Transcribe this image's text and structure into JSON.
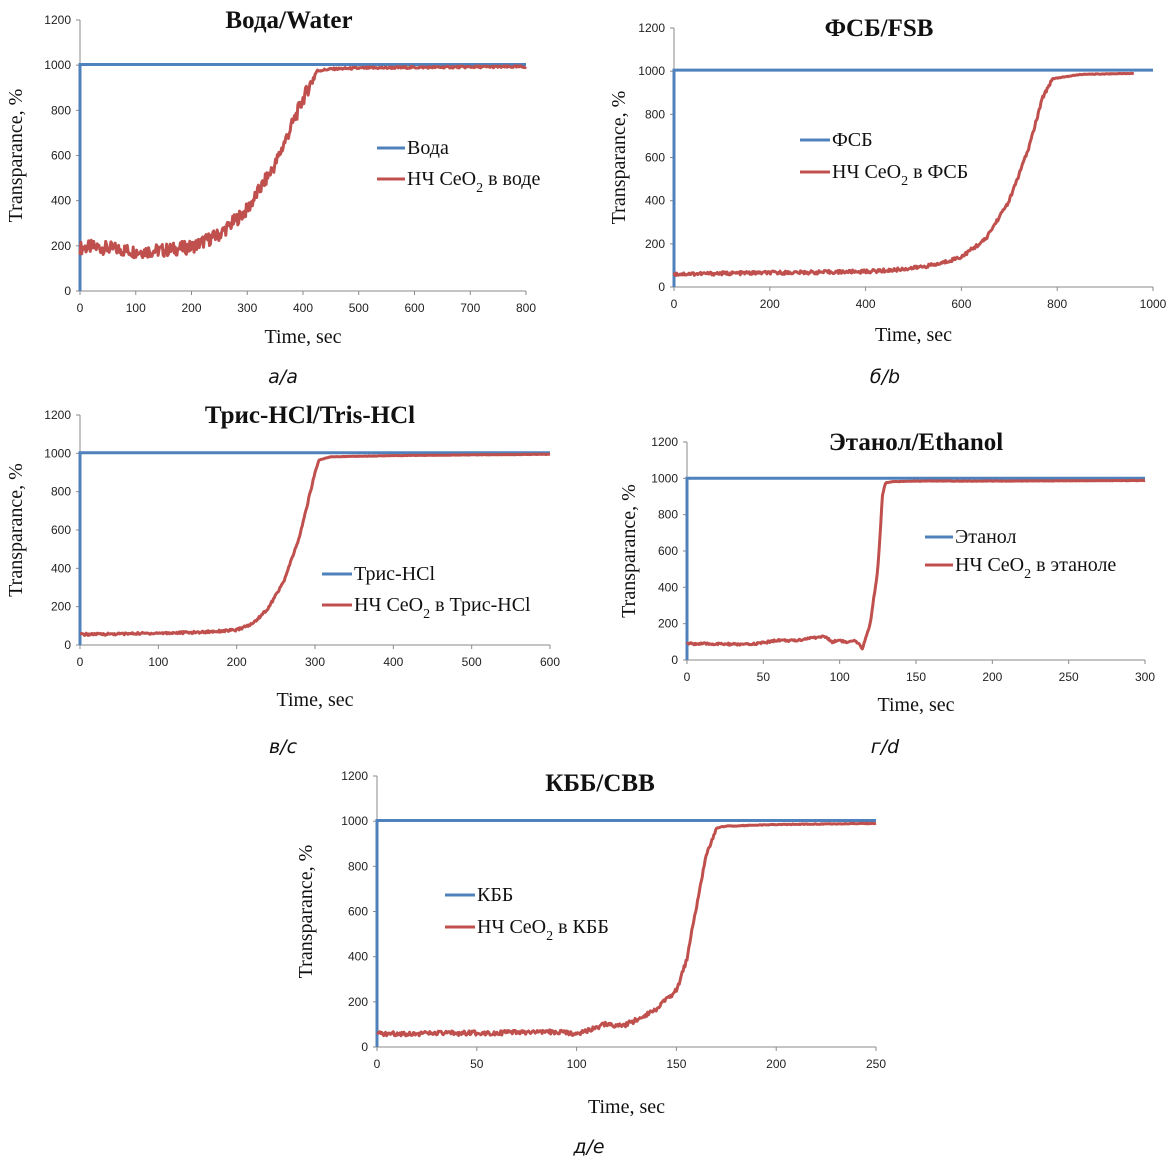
{
  "colors": {
    "reference": "#4f81bd",
    "sample": "#c0504d"
  },
  "chart_data": [
    {
      "type": "line",
      "title": "Вода/Water",
      "caption": "а/a",
      "xlabel": "Time, sec",
      "ylabel": "Transparance, %",
      "xlim": [
        0,
        800
      ],
      "ylim": [
        0,
        1200
      ],
      "xticks": [
        0,
        100,
        200,
        300,
        400,
        500,
        600,
        700,
        800
      ],
      "yticks": [
        0,
        200,
        400,
        600,
        800,
        1000,
        1200
      ],
      "legend": {
        "ref": "Вода",
        "sample_prefix": "НЧ CeO",
        "sample_sub": "2",
        "sample_suffix": " в воде"
      },
      "series": [
        {
          "name": "Вода",
          "role": "reference",
          "x": [
            0,
            0,
            800
          ],
          "y": [
            0,
            1003,
            1003
          ]
        },
        {
          "name": "НЧ CeO2 в воде",
          "role": "sample",
          "noise": 30,
          "x": [
            0,
            20,
            50,
            100,
            150,
            200,
            250,
            300,
            350,
            400,
            425,
            450,
            500,
            600,
            700,
            800
          ],
          "y": [
            190,
            195,
            190,
            175,
            180,
            195,
            250,
            360,
            560,
            850,
            975,
            983,
            987,
            990,
            992,
            993
          ]
        }
      ]
    },
    {
      "type": "line",
      "title": "ФСБ/FSB",
      "caption": "б/b",
      "xlabel": "Time, sec",
      "ylabel": "Transparance, %",
      "xlim": [
        0,
        1000
      ],
      "ylim": [
        0,
        1200
      ],
      "xticks": [
        0,
        200,
        400,
        600,
        800,
        1000
      ],
      "yticks": [
        0,
        200,
        400,
        600,
        800,
        1000,
        1200
      ],
      "legend": {
        "ref": "ФСБ",
        "sample_prefix": "НЧ CeO",
        "sample_sub": "2",
        "sample_suffix": " в ФСБ"
      },
      "series": [
        {
          "name": "ФСБ",
          "role": "reference",
          "x": [
            0,
            0,
            1000
          ],
          "y": [
            0,
            1005,
            1005
          ]
        },
        {
          "name": "НЧ CeO2 в ФСБ",
          "role": "sample",
          "noise": 8,
          "x": [
            0,
            100,
            200,
            300,
            400,
            450,
            500,
            550,
            600,
            650,
            700,
            740,
            770,
            790,
            850,
            960
          ],
          "y": [
            60,
            63,
            66,
            68,
            72,
            77,
            88,
            105,
            140,
            220,
            400,
            640,
            880,
            965,
            985,
            990
          ]
        }
      ]
    },
    {
      "type": "line",
      "title": "Трис-HCl/Tris-HCl",
      "caption": "в/c",
      "xlabel": "Time, sec",
      "ylabel": "Transparance, %",
      "xlim": [
        0,
        600
      ],
      "ylim": [
        0,
        1200
      ],
      "xticks": [
        0,
        100,
        200,
        300,
        400,
        500,
        600
      ],
      "yticks": [
        0,
        200,
        400,
        600,
        800,
        1000,
        1200
      ],
      "legend": {
        "ref": "Трис-HCl",
        "sample_prefix": "НЧ CeO",
        "sample_sub": "2",
        "sample_suffix": " в Трис-HCl"
      },
      "series": [
        {
          "name": "Трис-HCl",
          "role": "reference",
          "x": [
            0,
            0,
            600
          ],
          "y": [
            0,
            1003,
            1003
          ]
        },
        {
          "name": "НЧ CeO2 в Трис-HCl",
          "role": "sample",
          "noise": 6,
          "x": [
            0,
            50,
            100,
            150,
            200,
            220,
            240,
            260,
            280,
            300,
            305,
            320,
            400,
            500,
            600
          ],
          "y": [
            55,
            58,
            62,
            66,
            78,
            110,
            190,
            330,
            560,
            900,
            965,
            982,
            988,
            992,
            995
          ]
        }
      ]
    },
    {
      "type": "line",
      "title": "Этанол/Ethanol",
      "caption": "г/d",
      "xlabel": "Time, sec",
      "ylabel": "Transparance, %",
      "xlim": [
        0,
        300
      ],
      "ylim": [
        0,
        1200
      ],
      "xticks": [
        0,
        50,
        100,
        150,
        200,
        250,
        300
      ],
      "yticks": [
        0,
        200,
        400,
        600,
        800,
        1000,
        1200
      ],
      "legend": {
        "ref": "Этанол",
        "sample_prefix": "НЧ CeO",
        "sample_sub": "2",
        "sample_suffix": " в этаноле"
      },
      "series": [
        {
          "name": "Этанол",
          "role": "reference",
          "x": [
            0,
            0,
            300
          ],
          "y": [
            0,
            1000,
            1000
          ]
        },
        {
          "name": "НЧ CeO2 в этаноле",
          "role": "sample",
          "noise": 6,
          "x": [
            0,
            20,
            40,
            50,
            60,
            70,
            80,
            90,
            95,
            100,
            105,
            110,
            115,
            120,
            125,
            128,
            130,
            135,
            150,
            200,
            300
          ],
          "y": [
            90,
            88,
            85,
            95,
            110,
            105,
            120,
            130,
            100,
            110,
            95,
            105,
            65,
            200,
            500,
            900,
            975,
            982,
            985,
            985,
            988
          ]
        }
      ]
    },
    {
      "type": "line",
      "title": "КББ/CBB",
      "caption": "д/e",
      "xlabel": "Time, sec",
      "ylabel": "Transparance, %",
      "xlim": [
        0,
        250
      ],
      "ylim": [
        0,
        1200
      ],
      "xticks": [
        0,
        50,
        100,
        150,
        200,
        250
      ],
      "yticks": [
        0,
        200,
        400,
        600,
        800,
        1000,
        1200
      ],
      "legend": {
        "ref": "КББ",
        "sample_prefix": "НЧ CeO",
        "sample_sub": "2",
        "sample_suffix": " в КББ"
      },
      "series": [
        {
          "name": "КББ",
          "role": "reference",
          "x": [
            0,
            0,
            250
          ],
          "y": [
            0,
            1003,
            1003
          ]
        },
        {
          "name": "НЧ CeO2 в КББ",
          "role": "sample",
          "noise": 10,
          "x": [
            0,
            50,
            90,
            100,
            110,
            115,
            120,
            125,
            130,
            140,
            150,
            155,
            160,
            165,
            170,
            175,
            200,
            250
          ],
          "y": [
            58,
            62,
            66,
            60,
            85,
            105,
            90,
            100,
            120,
            170,
            250,
            380,
            620,
            850,
            970,
            978,
            985,
            990
          ]
        }
      ]
    }
  ]
}
